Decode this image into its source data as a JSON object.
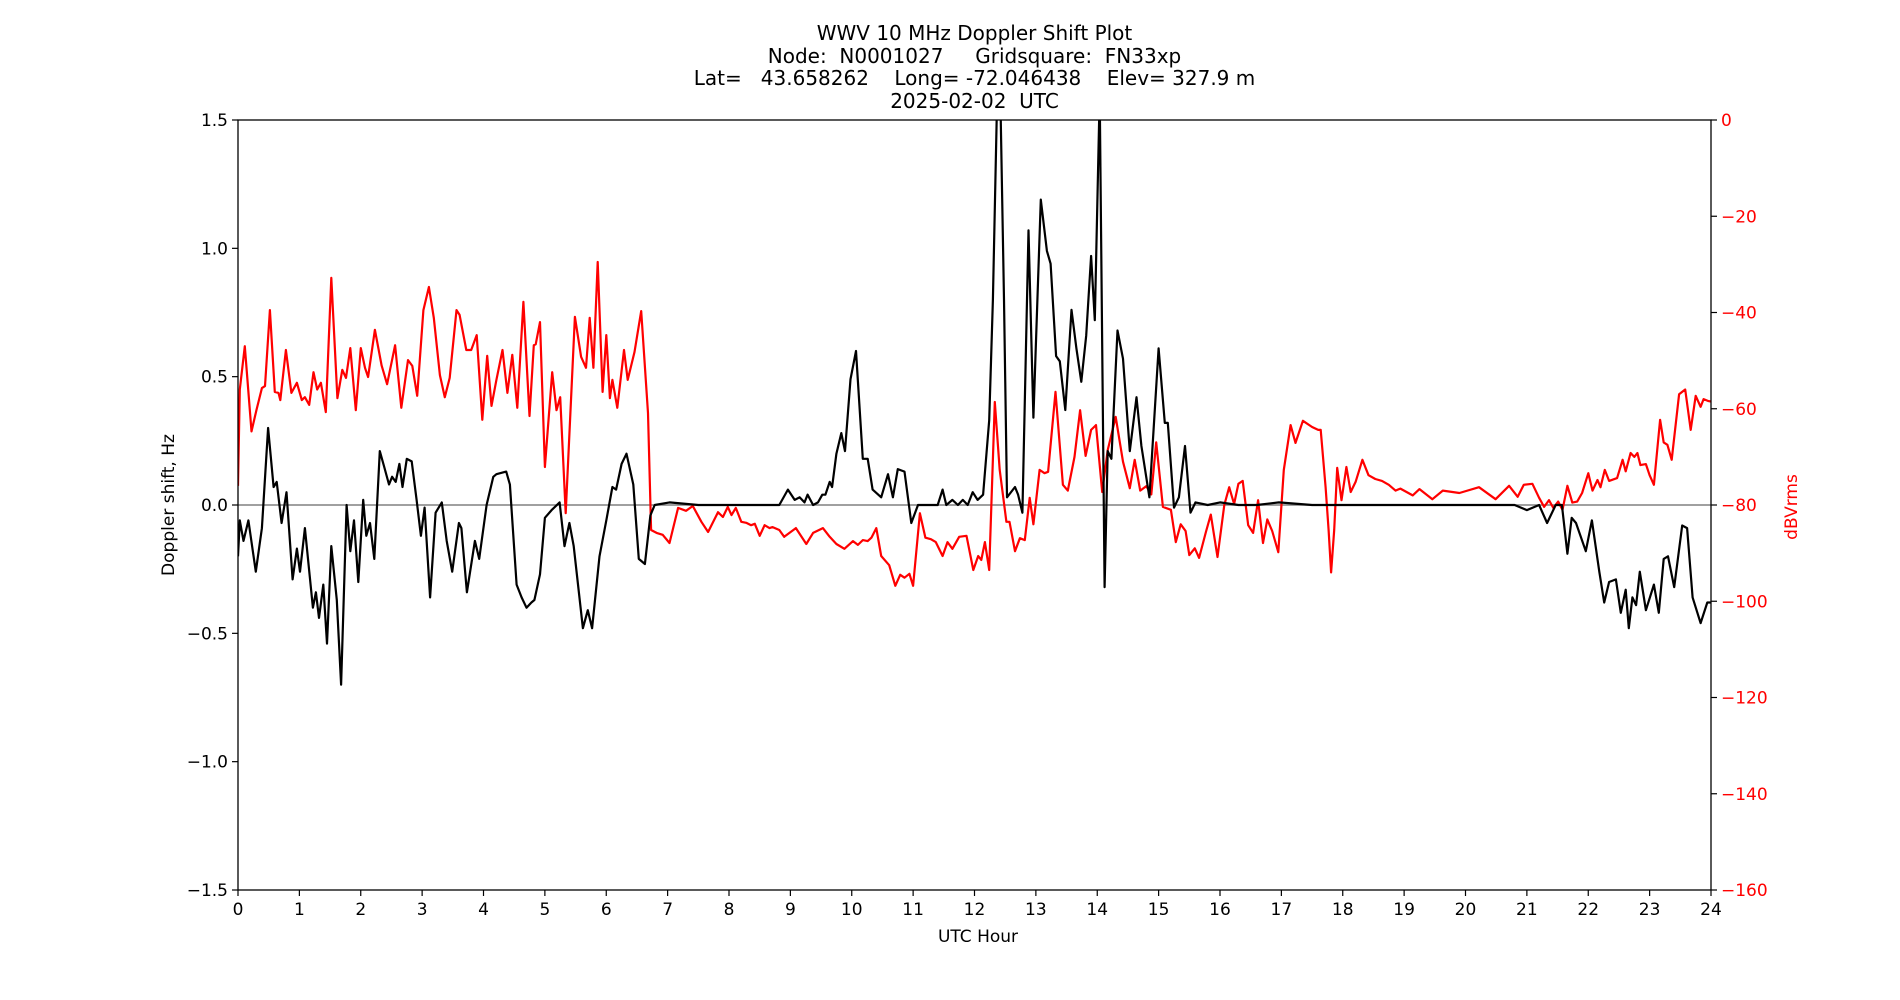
{
  "title": {
    "line1": "WWV 10 MHz Doppler Shift Plot",
    "line2": "Node:  N0001027     Gridsquare:  FN33xp",
    "line3": "Lat=   43.658262    Long= -72.046438    Elev= 327.9 m",
    "line4": "2025-02-02  UTC"
  },
  "axes": {
    "xlabel": "UTC Hour",
    "ylabel_left": "Doppler shift, Hz",
    "ylabel_right": "dBVrms",
    "xticks": [
      "0",
      "1",
      "2",
      "3",
      "4",
      "5",
      "6",
      "7",
      "8",
      "9",
      "10",
      "11",
      "12",
      "13",
      "14",
      "15",
      "16",
      "17",
      "18",
      "19",
      "20",
      "21",
      "22",
      "23",
      "24"
    ],
    "yticks_left": [
      "1.5",
      "1.0",
      "0.5",
      "0.0",
      "−0.5",
      "−1.0",
      "−1.5"
    ],
    "yticks_right": [
      "0",
      "−20",
      "−40",
      "−60",
      "−80",
      "−100",
      "−120",
      "−140",
      "−160"
    ]
  },
  "colors": {
    "doppler": "#000000",
    "power": "#ff0000",
    "zero_line": "#808080",
    "right_axis_text": "#ff0000"
  },
  "chart_data": {
    "type": "line",
    "title": "WWV 10 MHz Doppler Shift Plot — Node: N0001027, Gridsquare: FN33xp, Lat= 43.658262, Long= -72.046438, Elev= 327.9 m, 2025-02-02 UTC",
    "xlabel": "UTC Hour",
    "ylabel": "Doppler shift, Hz",
    "ylabel_right": "dBVrms",
    "xlim": [
      0,
      24
    ],
    "ylim": [
      -1.5,
      1.5
    ],
    "ylim_right": [
      -160,
      0
    ],
    "grid": false,
    "reference_line": {
      "y": 0.0,
      "color": "#808080"
    },
    "series": [
      {
        "name": "Doppler shift (Hz)",
        "axis": "left",
        "color": "#000000",
        "x": [
          0.0,
          0.03,
          0.09,
          0.17,
          0.29,
          0.39,
          0.49,
          0.58,
          0.63,
          0.71,
          0.79,
          0.89,
          0.96,
          1.01,
          1.09,
          1.22,
          1.27,
          1.32,
          1.39,
          1.45,
          1.52,
          1.61,
          1.68,
          1.77,
          1.83,
          1.89,
          1.96,
          2.04,
          2.09,
          2.15,
          2.22,
          2.31,
          2.38,
          2.46,
          2.51,
          2.57,
          2.63,
          2.68,
          2.75,
          2.83,
          2.91,
          2.98,
          3.04,
          3.13,
          3.22,
          3.32,
          3.4,
          3.49,
          3.6,
          3.64,
          3.73,
          3.86,
          3.93,
          4.05,
          4.16,
          4.21,
          4.37,
          4.43,
          4.54,
          4.62,
          4.7,
          4.78,
          4.83,
          4.92,
          5.0,
          5.11,
          5.24,
          5.32,
          5.4,
          5.47,
          5.62,
          5.7,
          5.77,
          5.89,
          6.0,
          6.1,
          6.16,
          6.25,
          6.33,
          6.44,
          6.53,
          6.63,
          6.72,
          6.79,
          7.03,
          7.5,
          8.0,
          8.5,
          8.82,
          8.96,
          9.07,
          9.15,
          9.23,
          9.28,
          9.37,
          9.45,
          9.52,
          9.57,
          9.64,
          9.68,
          9.75,
          9.83,
          9.89,
          9.98,
          10.07,
          10.18,
          10.26,
          10.34,
          10.48,
          10.59,
          10.67,
          10.75,
          10.86,
          10.97,
          11.08,
          11.21,
          11.4,
          11.48,
          11.54,
          11.64,
          11.73,
          11.81,
          11.89,
          11.97,
          12.05,
          12.14,
          12.24,
          12.3,
          12.37,
          12.42,
          12.48,
          12.53,
          12.66,
          12.71,
          12.78,
          12.88,
          12.96,
          13.08,
          13.18,
          13.24,
          13.33,
          13.39,
          13.48,
          13.58,
          13.66,
          13.74,
          13.82,
          13.9,
          13.96,
          14.04,
          14.12,
          14.17,
          14.23,
          14.33,
          14.42,
          14.53,
          14.64,
          14.72,
          14.85,
          15.0,
          15.1,
          15.15,
          15.25,
          15.33,
          15.43,
          15.52,
          15.6,
          15.8,
          16.0,
          16.3,
          16.6,
          16.96,
          17.5,
          18.0,
          19.0,
          20.0,
          20.5,
          20.8,
          21.0,
          21.2,
          21.33,
          21.47,
          21.57,
          21.66,
          21.73,
          21.8,
          21.96,
          22.06,
          22.18,
          22.26,
          22.34,
          22.45,
          22.53,
          22.61,
          22.66,
          22.72,
          22.78,
          22.84,
          22.94,
          23.07,
          23.15,
          23.23,
          23.3,
          23.4,
          23.53,
          23.61,
          23.7,
          23.83,
          23.94,
          24.0
        ],
        "values": [
          -0.2,
          -0.06,
          -0.14,
          -0.06,
          -0.26,
          -0.09,
          0.3,
          0.07,
          0.09,
          -0.07,
          0.05,
          -0.29,
          -0.17,
          -0.26,
          -0.09,
          -0.4,
          -0.34,
          -0.44,
          -0.31,
          -0.54,
          -0.16,
          -0.37,
          -0.7,
          0.0,
          -0.18,
          -0.06,
          -0.3,
          0.02,
          -0.12,
          -0.07,
          -0.21,
          0.21,
          0.15,
          0.08,
          0.11,
          0.09,
          0.16,
          0.07,
          0.18,
          0.17,
          0.02,
          -0.12,
          -0.01,
          -0.36,
          -0.03,
          0.01,
          -0.14,
          -0.26,
          -0.07,
          -0.09,
          -0.34,
          -0.14,
          -0.21,
          0.0,
          0.11,
          0.12,
          0.13,
          0.08,
          -0.31,
          -0.36,
          -0.4,
          -0.38,
          -0.37,
          -0.27,
          -0.05,
          -0.02,
          0.01,
          -0.16,
          -0.07,
          -0.16,
          -0.48,
          -0.41,
          -0.48,
          -0.2,
          -0.06,
          0.07,
          0.06,
          0.16,
          0.2,
          0.08,
          -0.21,
          -0.23,
          -0.04,
          0.0,
          0.01,
          0.0,
          0.0,
          0.0,
          0.0,
          0.06,
          0.02,
          0.03,
          0.01,
          0.04,
          0.0,
          0.01,
          0.04,
          0.04,
          0.09,
          0.07,
          0.2,
          0.28,
          0.21,
          0.49,
          0.6,
          0.18,
          0.18,
          0.06,
          0.03,
          0.12,
          0.03,
          0.14,
          0.13,
          -0.07,
          0.0,
          0.0,
          0.0,
          0.06,
          0.0,
          0.02,
          0.0,
          0.02,
          0.0,
          0.05,
          0.02,
          0.04,
          0.33,
          0.8,
          1.6,
          1.6,
          0.8,
          0.03,
          0.07,
          0.04,
          -0.03,
          1.07,
          0.34,
          1.19,
          0.99,
          0.94,
          0.58,
          0.56,
          0.37,
          0.76,
          0.61,
          0.48,
          0.66,
          0.97,
          0.72,
          1.6,
          -0.32,
          0.21,
          0.18,
          0.68,
          0.57,
          0.21,
          0.42,
          0.23,
          0.03,
          0.61,
          0.32,
          0.32,
          -0.01,
          0.03,
          0.23,
          -0.03,
          0.01,
          0.0,
          0.01,
          0.0,
          0.0,
          0.01,
          0.0,
          0.0,
          0.0,
          0.0,
          0.0,
          0.0,
          -0.02,
          0.0,
          -0.07,
          0.0,
          0.0,
          -0.19,
          -0.05,
          -0.07,
          -0.18,
          -0.06,
          -0.26,
          -0.38,
          -0.3,
          -0.29,
          -0.42,
          -0.33,
          -0.48,
          -0.36,
          -0.39,
          -0.26,
          -0.41,
          -0.31,
          -0.42,
          -0.21,
          -0.2,
          -0.32,
          -0.08,
          -0.09,
          -0.36,
          -0.46,
          -0.38,
          -0.38
        ]
      },
      {
        "name": "Signal level (dBVrms)",
        "axis": "right",
        "color": "#ff0000",
        "x": [
          0.0,
          0.03,
          0.11,
          0.22,
          0.3,
          0.39,
          0.44,
          0.52,
          0.6,
          0.66,
          0.69,
          0.78,
          0.87,
          0.96,
          1.04,
          1.09,
          1.16,
          1.23,
          1.29,
          1.35,
          1.43,
          1.52,
          1.62,
          1.7,
          1.76,
          1.83,
          1.92,
          2.0,
          2.07,
          2.12,
          2.23,
          2.34,
          2.43,
          2.56,
          2.66,
          2.77,
          2.84,
          2.92,
          3.02,
          3.11,
          3.19,
          3.29,
          3.37,
          3.45,
          3.56,
          3.61,
          3.72,
          3.8,
          3.89,
          3.98,
          4.06,
          4.13,
          4.21,
          4.31,
          4.39,
          4.47,
          4.55,
          4.65,
          4.75,
          4.82,
          4.85,
          4.92,
          5.0,
          5.12,
          5.19,
          5.25,
          5.34,
          5.49,
          5.59,
          5.67,
          5.73,
          5.79,
          5.86,
          5.94,
          6.0,
          6.06,
          6.1,
          6.18,
          6.29,
          6.35,
          6.46,
          6.57,
          6.68,
          6.73,
          6.82,
          6.92,
          7.03,
          7.17,
          7.3,
          7.41,
          7.55,
          7.66,
          7.82,
          7.9,
          7.98,
          8.04,
          8.11,
          8.2,
          8.28,
          8.36,
          8.42,
          8.5,
          8.58,
          8.66,
          8.71,
          8.82,
          8.9,
          9.09,
          9.26,
          9.37,
          9.53,
          9.64,
          9.75,
          9.88,
          10.02,
          10.1,
          10.18,
          10.26,
          10.32,
          10.4,
          10.48,
          10.61,
          10.71,
          10.79,
          10.86,
          10.94,
          11.0,
          11.11,
          11.2,
          11.29,
          11.37,
          11.48,
          11.56,
          11.64,
          11.75,
          11.87,
          11.98,
          12.06,
          12.11,
          12.17,
          12.24,
          12.33,
          12.41,
          12.52,
          12.57,
          12.66,
          12.74,
          12.82,
          12.9,
          12.96,
          13.06,
          13.14,
          13.2,
          13.32,
          13.44,
          13.52,
          13.63,
          13.72,
          13.81,
          13.9,
          13.98,
          14.08,
          14.17,
          14.3,
          14.42,
          14.53,
          14.61,
          14.7,
          14.8,
          14.88,
          14.96,
          15.07,
          15.2,
          15.28,
          15.36,
          15.44,
          15.5,
          15.59,
          15.66,
          15.77,
          15.85,
          15.96,
          16.07,
          16.15,
          16.23,
          16.3,
          16.37,
          16.46,
          16.54,
          16.62,
          16.7,
          16.77,
          16.85,
          16.95,
          17.04,
          17.15,
          17.23,
          17.35,
          17.5,
          17.6,
          17.64,
          17.72,
          17.77,
          17.81,
          17.86,
          17.91,
          17.98,
          18.06,
          18.13,
          18.21,
          18.32,
          18.42,
          18.53,
          18.64,
          18.75,
          18.86,
          18.94,
          19.14,
          19.25,
          19.46,
          19.63,
          19.9,
          20.22,
          20.49,
          20.71,
          20.85,
          20.95,
          21.09,
          21.2,
          21.28,
          21.36,
          21.43,
          21.51,
          21.58,
          21.66,
          21.74,
          21.82,
          21.9,
          22.0,
          22.07,
          22.15,
          22.2,
          22.27,
          22.34,
          22.47,
          22.56,
          22.61,
          22.69,
          22.75,
          22.8,
          22.85,
          22.94,
          23.0,
          23.07,
          23.17,
          23.23,
          23.29,
          23.36,
          23.48,
          23.58,
          23.67,
          23.75,
          23.83,
          23.88,
          23.96,
          24.0
        ],
        "values": [
          -76,
          -56,
          -47,
          -64.7,
          -60.3,
          -55.7,
          -55.3,
          -39.5,
          -56.5,
          -56.7,
          -58.2,
          -47.8,
          -56.7,
          -54.6,
          -58.2,
          -57.6,
          -59.2,
          -52.4,
          -56,
          -54.6,
          -60.7,
          -32.8,
          -57.8,
          -51.9,
          -53.6,
          -47.4,
          -60.3,
          -47.4,
          -51.5,
          -53.4,
          -43.6,
          -51,
          -54.9,
          -46.8,
          -59.8,
          -49.9,
          -51.1,
          -57.3,
          -39.5,
          -34.7,
          -41.1,
          -53,
          -57.6,
          -53.6,
          -39.5,
          -40.5,
          -47.8,
          -47.8,
          -44.7,
          -62.3,
          -49,
          -59.4,
          -54,
          -47.8,
          -56.7,
          -48.8,
          -59.8,
          -37.8,
          -61.5,
          -46.8,
          -46.6,
          -42,
          -72.1,
          -52.4,
          -60.3,
          -57.6,
          -81.7,
          -40.9,
          -49.2,
          -51.5,
          -41.1,
          -51.5,
          -29.5,
          -56.5,
          -44.7,
          -57.8,
          -54,
          -59.8,
          -47.8,
          -54,
          -48.2,
          -39.7,
          -60.9,
          -85.2,
          -85.8,
          -86.2,
          -87.9,
          -80.6,
          -81.2,
          -80.2,
          -83.5,
          -85.6,
          -81.5,
          -82.5,
          -80.4,
          -82.1,
          -80.6,
          -83.5,
          -83.7,
          -84.2,
          -83.9,
          -86.4,
          -84.2,
          -84.8,
          -84.6,
          -85.2,
          -86.6,
          -84.8,
          -88.1,
          -85.8,
          -84.8,
          -86.6,
          -88.1,
          -89.1,
          -87.5,
          -88.3,
          -87.3,
          -87.5,
          -86.8,
          -84.8,
          -90.6,
          -92.5,
          -96.8,
          -94.5,
          -95.1,
          -94.3,
          -96.8,
          -81.7,
          -86.8,
          -87.1,
          -87.7,
          -90.6,
          -87.7,
          -89.1,
          -86.6,
          -86.4,
          -93.5,
          -90.6,
          -91.4,
          -87.7,
          -93.5,
          -58.6,
          -72.7,
          -83.5,
          -83.5,
          -89.6,
          -86.9,
          -87.3,
          -78.5,
          -84,
          -72.7,
          -73.4,
          -73.1,
          -56.5,
          -75.8,
          -77,
          -70,
          -60.3,
          -69.8,
          -64.4,
          -63.4,
          -77.3,
          -68.6,
          -61.7,
          -71,
          -76.5,
          -70.6,
          -77,
          -76.1,
          -77.8,
          -67,
          -80.4,
          -81,
          -87.7,
          -84,
          -85.4,
          -90.4,
          -89,
          -91,
          -85.6,
          -82,
          -90.8,
          -80,
          -76.3,
          -79.8,
          -75.6,
          -75,
          -84.2,
          -85.8,
          -79,
          -87.9,
          -83,
          -85.4,
          -89.8,
          -72.7,
          -63.4,
          -67.1,
          -62.5,
          -63.8,
          -64.4,
          -64.4,
          -76.3,
          -85.2,
          -94,
          -85.2,
          -72.3,
          -79,
          -72.1,
          -77.3,
          -75.2,
          -70.6,
          -73.8,
          -74.6,
          -75,
          -75.8,
          -77,
          -76.6,
          -78,
          -76.7,
          -78.8,
          -77,
          -77.5,
          -76.3,
          -78.8,
          -76,
          -78.3,
          -75.8,
          -75.6,
          -78.5,
          -80.4,
          -79,
          -80.6,
          -79.3,
          -81,
          -76,
          -79.5,
          -79.3,
          -77.5,
          -73.4,
          -77,
          -74.8,
          -76.3,
          -72.7,
          -75,
          -74.4,
          -70.6,
          -73,
          -69.2,
          -70,
          -69.2,
          -71.7,
          -71.5,
          -73.8,
          -75.8,
          -62.3,
          -67,
          -67.5,
          -70.6,
          -57,
          -56,
          -64.4,
          -57.3,
          -59.6,
          -58,
          -58.4,
          -58.5
        ]
      }
    ]
  }
}
